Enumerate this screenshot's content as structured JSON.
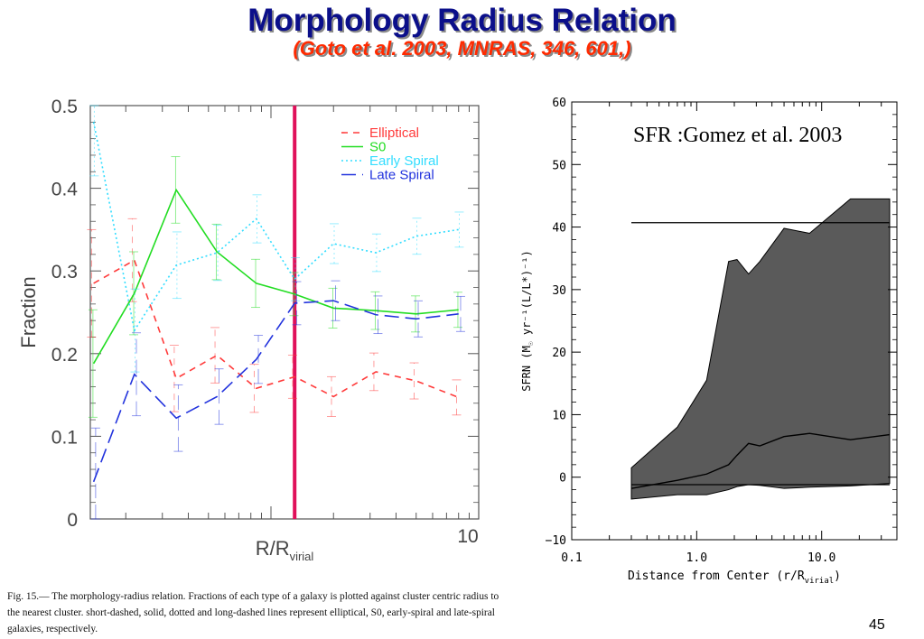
{
  "slide": {
    "title": "Morphology Radius Relation",
    "subtitle": "(Goto et al. 2003, MNRAS, 346, 601,)",
    "caption": "Fig. 15.— The morphology-radius relation. Fractions of each type of a galaxy is plotted against cluster centric radius to the nearest cluster. short-dashed, solid, dotted and long-dashed lines represent elliptical, S0, early-spiral and late-spiral galaxies, respectively.",
    "page_number": "45",
    "colors": {
      "title": "#0b0f8a",
      "subtitle": "#ff2a00",
      "elliptical": "#ff3b3b",
      "s0": "#22dd22",
      "early_spiral": "#33ddff",
      "late_spiral": "#2233dd",
      "marker_line": "#e0105a",
      "shade": "#5a5a5a"
    }
  },
  "chart_data": [
    {
      "type": "line",
      "xlabel": "R/R",
      "xlabel_sub": "virial",
      "ylabel": "Fraction",
      "xscale": "log",
      "xlim": [
        0.135,
        10
      ],
      "ylim": [
        0,
        0.5
      ],
      "xticks": [
        {
          "value": 10,
          "label": "10"
        }
      ],
      "yticks": [
        {
          "value": 0,
          "label": "0"
        },
        {
          "value": 0.1,
          "label": "0.1"
        },
        {
          "value": 0.2,
          "label": "0.2"
        },
        {
          "value": 0.3,
          "label": "0.3"
        },
        {
          "value": 0.4,
          "label": "0.4"
        },
        {
          "value": 0.5,
          "label": "0.5"
        }
      ],
      "vertical_line_x": 1.3,
      "legend_position": "top-right",
      "x": [
        0.14,
        0.22,
        0.35,
        0.55,
        0.85,
        1.3,
        2.0,
        3.2,
        5.0,
        8.0
      ],
      "series": [
        {
          "name": "Elliptical",
          "style": "short-dashed",
          "values": [
            0.285,
            0.313,
            0.17,
            0.198,
            0.158,
            0.172,
            0.148,
            0.178,
            0.167,
            0.147
          ]
        },
        {
          "name": "S0",
          "style": "solid",
          "values": [
            0.188,
            0.273,
            0.398,
            0.323,
            0.285,
            0.272,
            0.255,
            0.252,
            0.248,
            0.253
          ]
        },
        {
          "name": "Early Spiral",
          "style": "dotted",
          "values": [
            0.48,
            0.228,
            0.307,
            0.322,
            0.363,
            0.29,
            0.333,
            0.322,
            0.342,
            0.35
          ]
        },
        {
          "name": "Late Spiral",
          "style": "long-dashed",
          "values": [
            0.045,
            0.175,
            0.122,
            0.148,
            0.193,
            0.261,
            0.264,
            0.247,
            0.242,
            0.248
          ]
        }
      ]
    },
    {
      "type": "area",
      "annotation": "SFR :Gomez et al. 2003",
      "xlabel": "Distance from Center (r/R",
      "xlabel_sub": "virial",
      "xlabel_end": ")",
      "ylabel": "SFRN (M",
      "ylabel_sub": "☉",
      "ylabel_end": " yr⁻¹(L/L*)⁻¹)",
      "xscale": "log",
      "xlim": [
        0.1,
        40
      ],
      "ylim": [
        -10,
        60
      ],
      "xticks": [
        {
          "value": 0.1,
          "label": "0.1"
        },
        {
          "value": 1,
          "label": "1.0"
        },
        {
          "value": 10,
          "label": "10.0"
        }
      ],
      "yticks": [
        {
          "value": -10,
          "label": "−10"
        },
        {
          "value": 0,
          "label": "0"
        },
        {
          "value": 10,
          "label": "10"
        },
        {
          "value": 20,
          "label": "20"
        },
        {
          "value": 30,
          "label": "30"
        },
        {
          "value": 40,
          "label": "40"
        },
        {
          "value": 50,
          "label": "50"
        },
        {
          "value": 60,
          "label": "60"
        }
      ],
      "x": [
        0.3,
        0.7,
        1.2,
        1.8,
        2.1,
        2.6,
        3.2,
        5.0,
        8.0,
        17.0,
        35.0
      ],
      "upper": [
        1.5,
        8.0,
        15.5,
        34.5,
        34.8,
        32.5,
        34.5,
        39.8,
        39.0,
        44.5,
        44.5
      ],
      "median": [
        -1.8,
        -0.5,
        0.5,
        2.0,
        3.5,
        5.4,
        5.0,
        6.5,
        7.0,
        6.0,
        6.8
      ],
      "lower": [
        -3.5,
        -2.8,
        -2.8,
        -2.0,
        -1.5,
        -1.2,
        -1.3,
        -1.8,
        -1.6,
        -1.4,
        -1.0
      ],
      "reference_lines": [
        40.7,
        -1.2
      ],
      "reference_line_x_range": [
        0.3,
        35.0
      ]
    }
  ]
}
